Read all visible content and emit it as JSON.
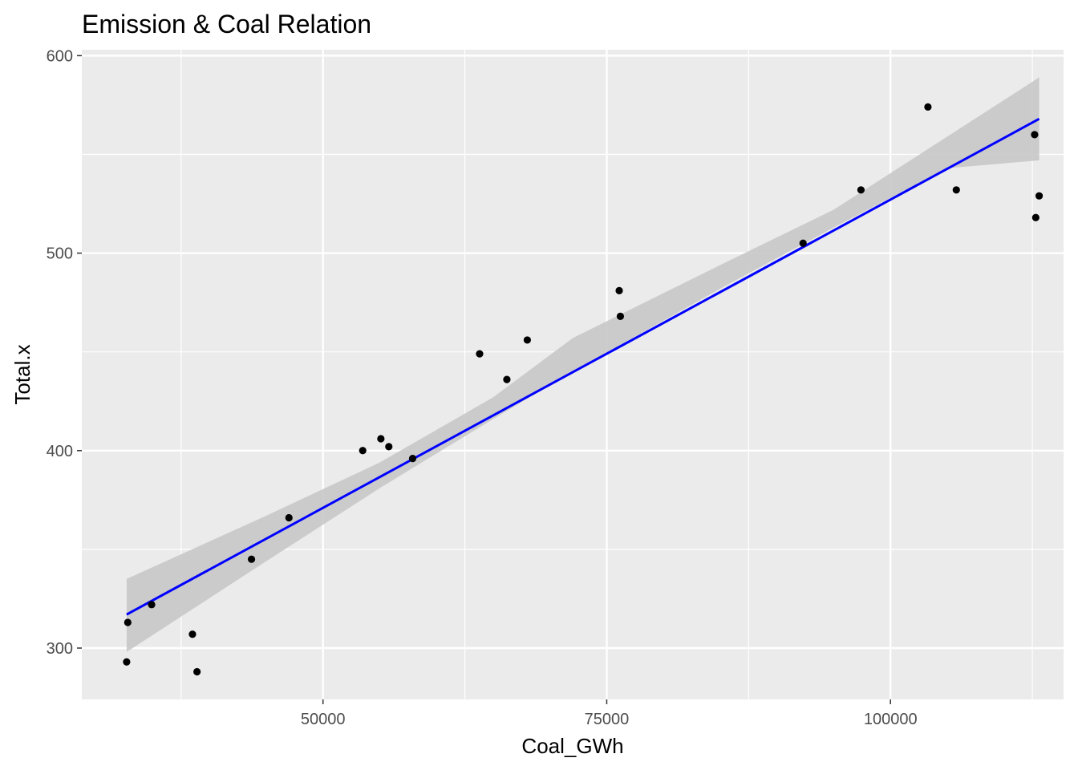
{
  "chart_data": {
    "type": "scatter",
    "title": "Emission & Coal Relation",
    "xlabel": "Coal_GWh",
    "ylabel": "Total.x",
    "xlim": [
      28750,
      115250
    ],
    "ylim": [
      274,
      603
    ],
    "x_ticks": [
      50000,
      75000,
      100000
    ],
    "x_tick_labels": [
      "50000",
      "75000",
      "100000"
    ],
    "y_ticks": [
      300,
      400,
      500,
      600
    ],
    "y_tick_labels": [
      "300",
      "400",
      "500",
      "600"
    ],
    "grid": true,
    "background": "#ebebeb",
    "point_color": "#000000",
    "fit_line_color": "#0000ff",
    "ribbon_color": "#c8c8c8",
    "points": [
      {
        "x": 32700,
        "y": 293
      },
      {
        "x": 32800,
        "y": 313
      },
      {
        "x": 34900,
        "y": 322
      },
      {
        "x": 38500,
        "y": 307
      },
      {
        "x": 38900,
        "y": 288
      },
      {
        "x": 43700,
        "y": 345
      },
      {
        "x": 47000,
        "y": 366
      },
      {
        "x": 53500,
        "y": 400
      },
      {
        "x": 55100,
        "y": 406
      },
      {
        "x": 55800,
        "y": 402
      },
      {
        "x": 57900,
        "y": 396
      },
      {
        "x": 63800,
        "y": 449
      },
      {
        "x": 66200,
        "y": 436
      },
      {
        "x": 68000,
        "y": 456
      },
      {
        "x": 76100,
        "y": 481
      },
      {
        "x": 76200,
        "y": 468
      },
      {
        "x": 92300,
        "y": 505
      },
      {
        "x": 97400,
        "y": 532
      },
      {
        "x": 103300,
        "y": 574
      },
      {
        "x": 105800,
        "y": 532
      },
      {
        "x": 112700,
        "y": 560
      },
      {
        "x": 112800,
        "y": 518
      },
      {
        "x": 113100,
        "y": 529
      }
    ],
    "fit_line": {
      "x": [
        32700,
        113100
      ],
      "y": [
        317,
        568
      ]
    },
    "confidence_band": {
      "x": [
        32700,
        45000,
        55000,
        65000,
        72000,
        85000,
        95000,
        105000,
        113100
      ],
      "lower": [
        298,
        344,
        381,
        416,
        440,
        482,
        513,
        543,
        547
      ],
      "upper": [
        335,
        367,
        394,
        427,
        457,
        494,
        522,
        559,
        589
      ]
    }
  }
}
